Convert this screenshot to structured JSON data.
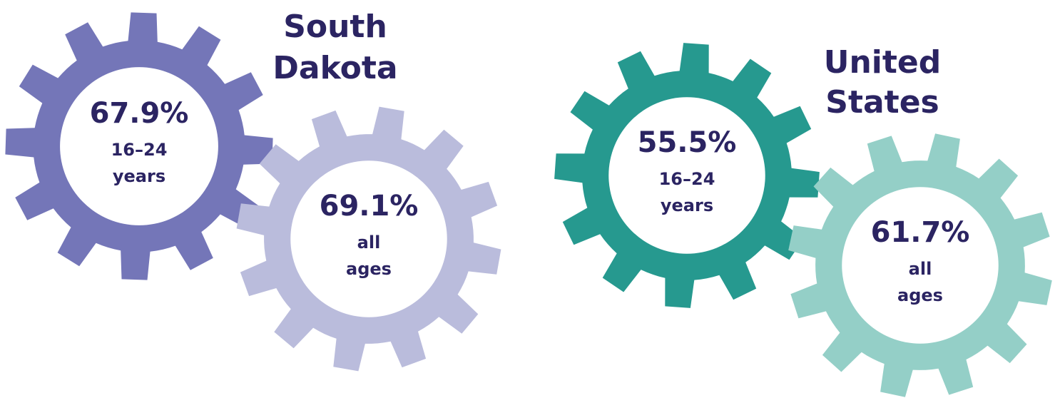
{
  "groups": [
    {
      "title": [
        "South",
        "Dakota"
      ],
      "gears": [
        {
          "value": "67.9%",
          "label": [
            "16–24",
            "years"
          ]
        },
        {
          "value": "69.1%",
          "label": [
            "all",
            "ages"
          ]
        }
      ]
    },
    {
      "title": [
        "United",
        "States"
      ],
      "gears": [
        {
          "value": "55.5%",
          "label": [
            "16–24",
            "years"
          ]
        },
        {
          "value": "61.7%",
          "label": [
            "all",
            "ages"
          ]
        }
      ]
    }
  ]
}
